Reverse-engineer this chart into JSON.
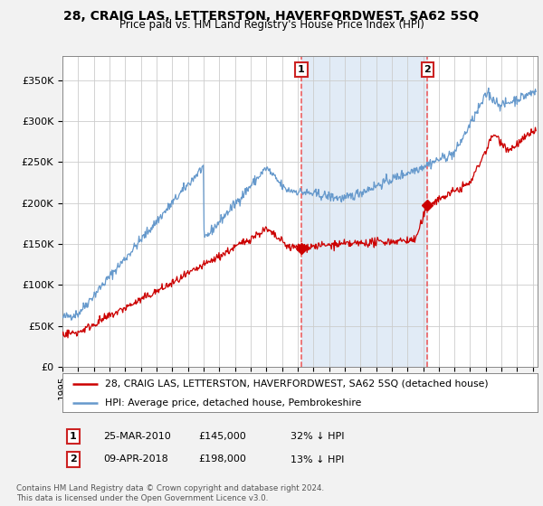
{
  "title": "28, CRAIG LAS, LETTERSTON, HAVERFORDWEST, SA62 5SQ",
  "subtitle": "Price paid vs. HM Land Registry's House Price Index (HPI)",
  "footnote": "Contains HM Land Registry data © Crown copyright and database right 2024.\nThis data is licensed under the Open Government Licence v3.0.",
  "legend_line1": "28, CRAIG LAS, LETTERSTON, HAVERFORDWEST, SA62 5SQ (detached house)",
  "legend_line2": "HPI: Average price, detached house, Pembrokeshire",
  "annotation1": {
    "label": "1",
    "date": "25-MAR-2010",
    "price": "£145,000",
    "pct": "32% ↓ HPI"
  },
  "annotation2": {
    "label": "2",
    "date": "09-APR-2018",
    "price": "£198,000",
    "pct": "13% ↓ HPI"
  },
  "background_color": "#f2f2f2",
  "plot_bg_color": "#ffffff",
  "red_color": "#cc0000",
  "blue_color": "#6699cc",
  "shade_color": "#dce8f5",
  "vline_color": "#ee5555",
  "sale1_x": 2010.23,
  "sale1_y": 145000,
  "sale2_x": 2018.27,
  "sale2_y": 198000,
  "ylim": [
    0,
    380000
  ],
  "yticks": [
    0,
    50000,
    100000,
    150000,
    200000,
    250000,
    300000,
    350000
  ],
  "xlim_left": 1995,
  "xlim_right": 2025.3
}
